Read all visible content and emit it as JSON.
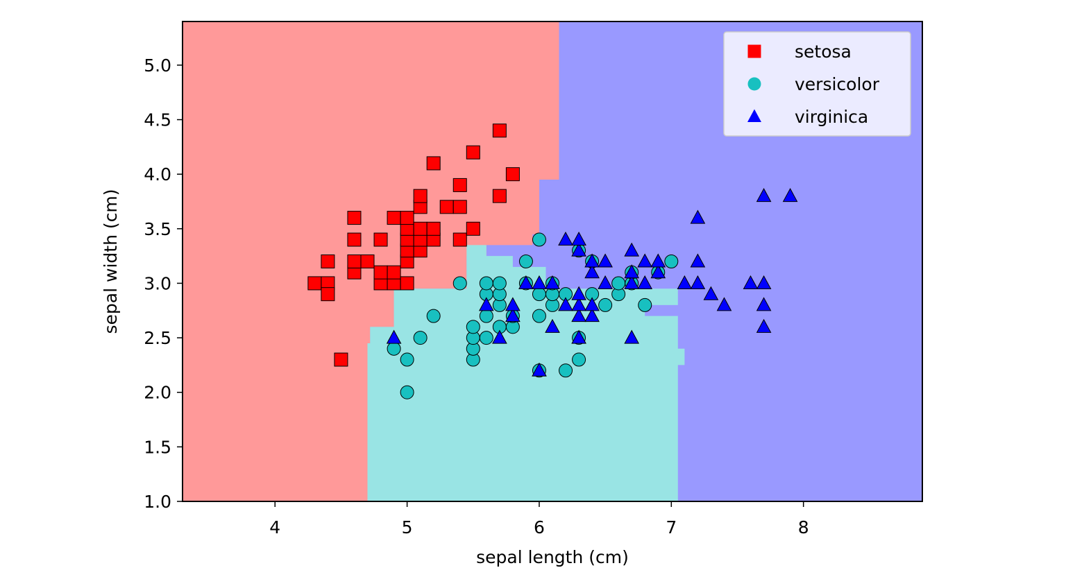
{
  "chart_data": {
    "type": "scatter",
    "xlabel": "sepal length (cm)",
    "ylabel": "sepal width (cm)",
    "xlim": [
      3.3,
      8.9
    ],
    "ylim": [
      1.0,
      5.4
    ],
    "x_ticks": [
      "4",
      "5",
      "6",
      "7",
      "8"
    ],
    "y_ticks": [
      "1.0",
      "1.5",
      "2.0",
      "2.5",
      "3.0",
      "3.5",
      "4.0",
      "4.5",
      "5.0"
    ],
    "grid": false,
    "legend_position": "top-right",
    "background": "decision regions",
    "region_colors": {
      "setosa": "#ff9999",
      "versicolor": "#99e4e4",
      "virginica": "#9999ff"
    },
    "regions": {
      "setosa": [
        [
          3.3,
          1.0
        ],
        [
          4.7,
          1.0
        ],
        [
          4.7,
          2.45
        ],
        [
          4.72,
          2.45
        ],
        [
          4.72,
          2.6
        ],
        [
          4.9,
          2.6
        ],
        [
          4.9,
          2.95
        ],
        [
          5.45,
          2.95
        ],
        [
          5.45,
          3.25
        ],
        [
          5.6,
          3.25
        ],
        [
          5.6,
          3.35
        ],
        [
          5.95,
          3.35
        ],
        [
          5.95,
          3.45
        ],
        [
          6.0,
          3.45
        ],
        [
          6.0,
          3.95
        ],
        [
          6.15,
          3.95
        ],
        [
          6.15,
          5.4
        ],
        [
          3.3,
          5.4
        ]
      ],
      "versicolor": [
        [
          4.7,
          1.0
        ],
        [
          7.05,
          1.0
        ],
        [
          7.05,
          2.25
        ],
        [
          7.1,
          2.25
        ],
        [
          7.1,
          2.4
        ],
        [
          7.05,
          2.4
        ],
        [
          7.05,
          2.55
        ],
        [
          5.9,
          2.55
        ],
        [
          5.9,
          2.45
        ],
        [
          7.05,
          2.45
        ],
        [
          7.05,
          2.7
        ],
        [
          6.8,
          2.7
        ],
        [
          6.8,
          2.8
        ],
        [
          7.05,
          2.8
        ],
        [
          7.05,
          2.95
        ],
        [
          6.05,
          2.95
        ],
        [
          6.05,
          3.15
        ],
        [
          5.8,
          3.15
        ],
        [
          5.8,
          3.25
        ],
        [
          5.6,
          3.25
        ],
        [
          5.6,
          3.35
        ],
        [
          5.45,
          3.35
        ],
        [
          5.45,
          3.25
        ],
        [
          5.45,
          2.95
        ],
        [
          4.9,
          2.95
        ],
        [
          4.9,
          2.6
        ],
        [
          4.72,
          2.6
        ],
        [
          4.72,
          2.45
        ],
        [
          4.7,
          2.45
        ]
      ]
    },
    "series": [
      {
        "name": "setosa",
        "marker": "square",
        "color": "#ff0000",
        "points": [
          [
            4.3,
            3.0
          ],
          [
            4.4,
            3.0
          ],
          [
            4.4,
            3.2
          ],
          [
            4.4,
            2.9
          ],
          [
            4.5,
            2.3
          ],
          [
            4.6,
            3.1
          ],
          [
            4.6,
            3.4
          ],
          [
            4.6,
            3.6
          ],
          [
            4.6,
            3.2
          ],
          [
            4.7,
            3.2
          ],
          [
            4.8,
            3.0
          ],
          [
            4.8,
            3.4
          ],
          [
            4.8,
            3.1
          ],
          [
            4.9,
            3.0
          ],
          [
            4.9,
            3.1
          ],
          [
            4.9,
            3.6
          ],
          [
            5.0,
            3.0
          ],
          [
            5.0,
            3.2
          ],
          [
            5.0,
            3.3
          ],
          [
            5.0,
            3.4
          ],
          [
            5.0,
            3.5
          ],
          [
            5.0,
            3.6
          ],
          [
            5.1,
            3.3
          ],
          [
            5.1,
            3.4
          ],
          [
            5.1,
            3.5
          ],
          [
            5.1,
            3.7
          ],
          [
            5.1,
            3.8
          ],
          [
            5.2,
            3.4
          ],
          [
            5.2,
            3.5
          ],
          [
            5.2,
            4.1
          ],
          [
            5.3,
            3.7
          ],
          [
            5.4,
            3.4
          ],
          [
            5.4,
            3.7
          ],
          [
            5.4,
            3.9
          ],
          [
            5.5,
            3.5
          ],
          [
            5.5,
            4.2
          ],
          [
            5.7,
            3.8
          ],
          [
            5.7,
            4.4
          ],
          [
            5.8,
            4.0
          ]
        ]
      },
      {
        "name": "versicolor",
        "marker": "circle",
        "color": "#18c0c0",
        "points": [
          [
            4.9,
            2.4
          ],
          [
            5.0,
            2.0
          ],
          [
            5.0,
            2.3
          ],
          [
            5.1,
            2.5
          ],
          [
            5.2,
            2.7
          ],
          [
            5.4,
            3.0
          ],
          [
            5.5,
            2.3
          ],
          [
            5.5,
            2.4
          ],
          [
            5.5,
            2.5
          ],
          [
            5.5,
            2.6
          ],
          [
            5.6,
            2.5
          ],
          [
            5.6,
            2.7
          ],
          [
            5.6,
            2.9
          ],
          [
            5.6,
            3.0
          ],
          [
            5.7,
            2.6
          ],
          [
            5.7,
            2.8
          ],
          [
            5.7,
            2.9
          ],
          [
            5.7,
            3.0
          ],
          [
            5.8,
            2.6
          ],
          [
            5.8,
            2.7
          ],
          [
            5.9,
            3.0
          ],
          [
            5.9,
            3.2
          ],
          [
            6.0,
            2.2
          ],
          [
            6.0,
            2.7
          ],
          [
            6.0,
            2.9
          ],
          [
            6.0,
            3.4
          ],
          [
            6.1,
            2.8
          ],
          [
            6.1,
            2.9
          ],
          [
            6.1,
            3.0
          ],
          [
            6.2,
            2.2
          ],
          [
            6.2,
            2.9
          ],
          [
            6.3,
            2.3
          ],
          [
            6.3,
            2.5
          ],
          [
            6.3,
            3.3
          ],
          [
            6.4,
            2.9
          ],
          [
            6.4,
            3.2
          ],
          [
            6.5,
            2.8
          ],
          [
            6.6,
            2.9
          ],
          [
            6.6,
            3.0
          ],
          [
            6.7,
            3.0
          ],
          [
            6.7,
            3.1
          ],
          [
            6.8,
            2.8
          ],
          [
            6.9,
            3.1
          ],
          [
            7.0,
            3.2
          ]
        ]
      },
      {
        "name": "virginica",
        "marker": "triangle",
        "color": "#0000ff",
        "points": [
          [
            4.9,
            2.5
          ],
          [
            5.6,
            2.8
          ],
          [
            5.7,
            2.5
          ],
          [
            5.8,
            2.7
          ],
          [
            5.8,
            2.8
          ],
          [
            5.9,
            3.0
          ],
          [
            6.0,
            2.2
          ],
          [
            6.0,
            3.0
          ],
          [
            6.1,
            2.6
          ],
          [
            6.1,
            3.0
          ],
          [
            6.2,
            2.8
          ],
          [
            6.2,
            3.4
          ],
          [
            6.3,
            2.5
          ],
          [
            6.3,
            2.7
          ],
          [
            6.3,
            2.8
          ],
          [
            6.3,
            2.9
          ],
          [
            6.3,
            3.3
          ],
          [
            6.3,
            3.4
          ],
          [
            6.4,
            2.7
          ],
          [
            6.4,
            2.8
          ],
          [
            6.4,
            3.1
          ],
          [
            6.4,
            3.2
          ],
          [
            6.5,
            3.0
          ],
          [
            6.5,
            3.2
          ],
          [
            6.7,
            2.5
          ],
          [
            6.7,
            3.0
          ],
          [
            6.7,
            3.1
          ],
          [
            6.7,
            3.3
          ],
          [
            6.8,
            3.0
          ],
          [
            6.8,
            3.2
          ],
          [
            6.9,
            3.1
          ],
          [
            6.9,
            3.2
          ],
          [
            7.1,
            3.0
          ],
          [
            7.2,
            3.0
          ],
          [
            7.2,
            3.2
          ],
          [
            7.2,
            3.6
          ],
          [
            7.3,
            2.9
          ],
          [
            7.4,
            2.8
          ],
          [
            7.6,
            3.0
          ],
          [
            7.7,
            2.6
          ],
          [
            7.7,
            2.8
          ],
          [
            7.7,
            3.0
          ],
          [
            7.7,
            3.8
          ],
          [
            7.9,
            3.8
          ]
        ]
      }
    ]
  }
}
